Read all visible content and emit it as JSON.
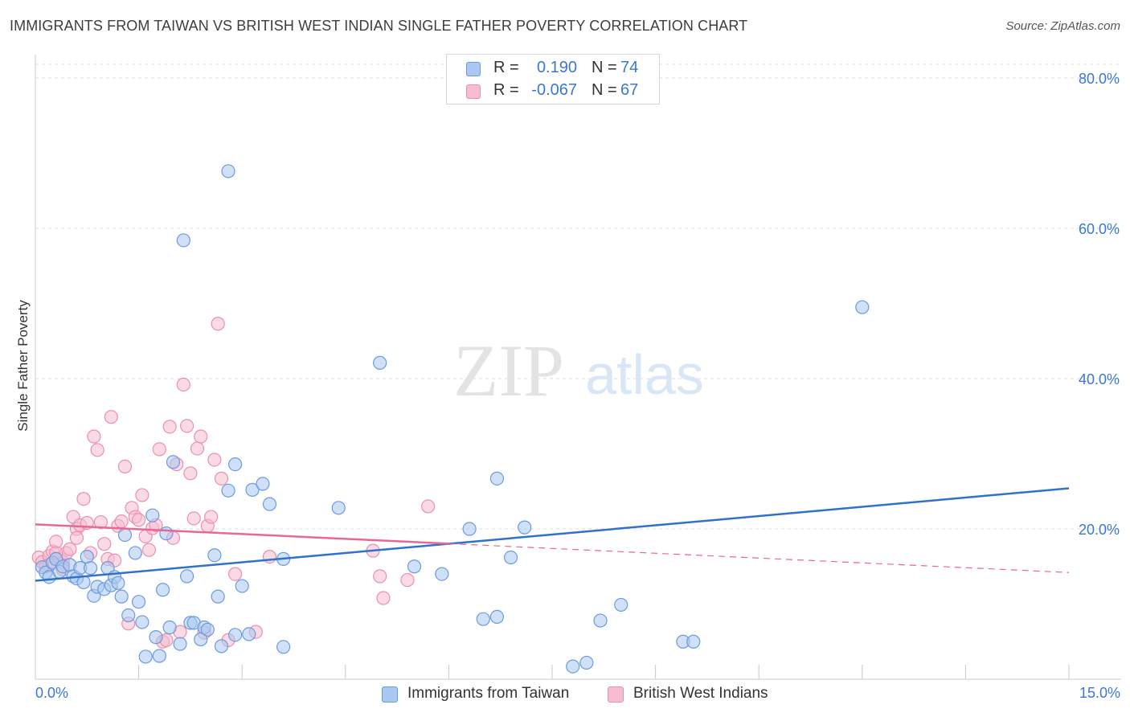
{
  "header": {
    "title": "IMMIGRANTS FROM TAIWAN VS BRITISH WEST INDIAN SINGLE FATHER POVERTY CORRELATION CHART",
    "source": "Source: ZipAtlas.com"
  },
  "watermark": {
    "zip": "ZIP",
    "atlas": "atlas"
  },
  "legend_top": {
    "rows": [
      {
        "r_label": "R =",
        "r_value": "0.190",
        "n_label": "N =",
        "n_value": "74"
      },
      {
        "r_label": "R =",
        "r_value": "-0.067",
        "n_label": "N =",
        "n_value": "67"
      }
    ]
  },
  "colors": {
    "blue_fill": "#aac8f0",
    "blue_stroke": "#6a9bde",
    "blue_line": "#2f72cc",
    "pink_fill": "#f6bcd0",
    "pink_stroke": "#ec8fae",
    "pink_line": "#e86894",
    "grid": "#dcdcdc",
    "axis_text": "#3a78cf"
  },
  "chart_data": {
    "type": "scatter",
    "title": "IMMIGRANTS FROM TAIWAN VS BRITISH WEST INDIAN SINGLE FATHER POVERTY CORRELATION CHART",
    "xlabel": "",
    "ylabel": "Single Father Poverty",
    "xlim": [
      0,
      15
    ],
    "ylim": [
      0,
      80
    ],
    "x_tick_labels": [
      "0.0%",
      "15.0%"
    ],
    "y_ticks": [
      20,
      40,
      60,
      80
    ],
    "y_tick_labels": [
      "20.0%",
      "40.0%",
      "60.0%",
      "80.0%"
    ],
    "grid": true,
    "legend_position": "bottom",
    "series": [
      {
        "name": "Immigrants from Taiwan",
        "color": "#aac8f0",
        "r": 0.19,
        "n": 74,
        "trend": {
          "x": [
            0,
            15
          ],
          "y": [
            13.1,
            25.4
          ],
          "dashed_from": null
        },
        "points": [
          [
            0.1,
            14.9
          ],
          [
            0.15,
            14.2
          ],
          [
            0.2,
            13.6
          ],
          [
            0.25,
            15.5
          ],
          [
            0.3,
            16.0
          ],
          [
            0.35,
            14.3
          ],
          [
            0.4,
            15.0
          ],
          [
            0.5,
            15.2
          ],
          [
            0.55,
            13.7
          ],
          [
            0.6,
            13.4
          ],
          [
            0.65,
            14.8
          ],
          [
            0.7,
            12.9
          ],
          [
            0.75,
            16.3
          ],
          [
            0.8,
            14.8
          ],
          [
            0.85,
            11.1
          ],
          [
            0.9,
            12.3
          ],
          [
            1.0,
            12.0
          ],
          [
            1.05,
            14.8
          ],
          [
            1.1,
            12.5
          ],
          [
            1.15,
            13.6
          ],
          [
            1.2,
            12.8
          ],
          [
            1.25,
            11.0
          ],
          [
            1.3,
            19.2
          ],
          [
            1.35,
            8.5
          ],
          [
            1.45,
            16.8
          ],
          [
            1.5,
            10.3
          ],
          [
            1.55,
            7.6
          ],
          [
            1.6,
            3.0
          ],
          [
            1.7,
            21.8
          ],
          [
            1.75,
            5.6
          ],
          [
            1.8,
            3.1
          ],
          [
            1.85,
            11.9
          ],
          [
            1.9,
            19.4
          ],
          [
            1.95,
            6.9
          ],
          [
            2.0,
            28.9
          ],
          [
            2.1,
            4.7
          ],
          [
            2.15,
            58.4
          ],
          [
            2.2,
            13.7
          ],
          [
            2.25,
            7.5
          ],
          [
            2.3,
            7.5
          ],
          [
            2.4,
            5.3
          ],
          [
            2.45,
            6.9
          ],
          [
            2.5,
            6.6
          ],
          [
            2.6,
            16.5
          ],
          [
            2.65,
            11.0
          ],
          [
            2.7,
            4.4
          ],
          [
            2.8,
            67.6
          ],
          [
            2.8,
            25.1
          ],
          [
            2.9,
            28.6
          ],
          [
            2.9,
            5.9
          ],
          [
            3.0,
            12.4
          ],
          [
            3.1,
            6.0
          ],
          [
            3.15,
            25.2
          ],
          [
            3.3,
            26.0
          ],
          [
            3.4,
            23.3
          ],
          [
            3.6,
            16.0
          ],
          [
            3.6,
            4.3
          ],
          [
            4.4,
            22.8
          ],
          [
            5.0,
            42.1
          ],
          [
            5.5,
            15.0
          ],
          [
            5.9,
            14.0
          ],
          [
            6.3,
            20.0
          ],
          [
            6.5,
            8.0
          ],
          [
            6.7,
            8.3
          ],
          [
            6.7,
            26.7
          ],
          [
            6.9,
            16.2
          ],
          [
            7.1,
            20.2
          ],
          [
            7.8,
            1.7
          ],
          [
            8.0,
            2.2
          ],
          [
            8.2,
            7.8
          ],
          [
            8.5,
            9.9
          ],
          [
            9.4,
            5.0
          ],
          [
            9.55,
            5.0
          ],
          [
            12.0,
            49.5
          ]
        ]
      },
      {
        "name": "British West Indians",
        "color": "#f6bcd0",
        "r": -0.067,
        "n": 67,
        "trend": {
          "x": [
            0,
            15
          ],
          "y": [
            20.6,
            14.2
          ],
          "dashed_from": 6.0
        },
        "points": [
          [
            0.05,
            16.2
          ],
          [
            0.1,
            15.6
          ],
          [
            0.15,
            15.0
          ],
          [
            0.2,
            16.4
          ],
          [
            0.25,
            17.0
          ],
          [
            0.3,
            18.3
          ],
          [
            0.35,
            16.0
          ],
          [
            0.4,
            15.6
          ],
          [
            0.45,
            16.8
          ],
          [
            0.5,
            17.3
          ],
          [
            0.55,
            21.6
          ],
          [
            0.6,
            20.0
          ],
          [
            0.65,
            20.5
          ],
          [
            0.7,
            24.0
          ],
          [
            0.75,
            20.8
          ],
          [
            0.8,
            16.8
          ],
          [
            0.85,
            32.3
          ],
          [
            0.9,
            30.5
          ],
          [
            0.95,
            20.9
          ],
          [
            1.0,
            18.0
          ],
          [
            1.05,
            16.0
          ],
          [
            1.1,
            34.9
          ],
          [
            1.15,
            15.8
          ],
          [
            1.2,
            20.4
          ],
          [
            1.25,
            21.0
          ],
          [
            1.3,
            28.3
          ],
          [
            1.35,
            7.4
          ],
          [
            1.4,
            22.8
          ],
          [
            1.45,
            21.6
          ],
          [
            1.5,
            21.2
          ],
          [
            1.55,
            24.5
          ],
          [
            1.6,
            19.0
          ],
          [
            1.65,
            17.2
          ],
          [
            1.7,
            20.1
          ],
          [
            1.75,
            20.5
          ],
          [
            1.8,
            30.6
          ],
          [
            1.85,
            5.0
          ],
          [
            1.9,
            5.2
          ],
          [
            1.95,
            33.6
          ],
          [
            2.0,
            18.8
          ],
          [
            2.05,
            28.6
          ],
          [
            2.1,
            6.3
          ],
          [
            2.15,
            39.2
          ],
          [
            2.2,
            33.7
          ],
          [
            2.25,
            27.4
          ],
          [
            2.3,
            21.4
          ],
          [
            2.35,
            30.7
          ],
          [
            2.4,
            32.3
          ],
          [
            2.45,
            6.2
          ],
          [
            2.5,
            20.4
          ],
          [
            2.55,
            21.6
          ],
          [
            2.6,
            29.2
          ],
          [
            2.65,
            47.3
          ],
          [
            2.7,
            26.7
          ],
          [
            2.8,
            5.2
          ],
          [
            2.9,
            14.0
          ],
          [
            3.2,
            6.3
          ],
          [
            3.4,
            16.3
          ],
          [
            4.9,
            17.1
          ],
          [
            5.0,
            13.7
          ],
          [
            5.05,
            10.8
          ],
          [
            5.4,
            13.2
          ],
          [
            5.7,
            23.0
          ],
          [
            0.2,
            15.2
          ],
          [
            0.3,
            16.8
          ],
          [
            0.4,
            14.6
          ],
          [
            0.6,
            18.8
          ]
        ]
      }
    ]
  }
}
